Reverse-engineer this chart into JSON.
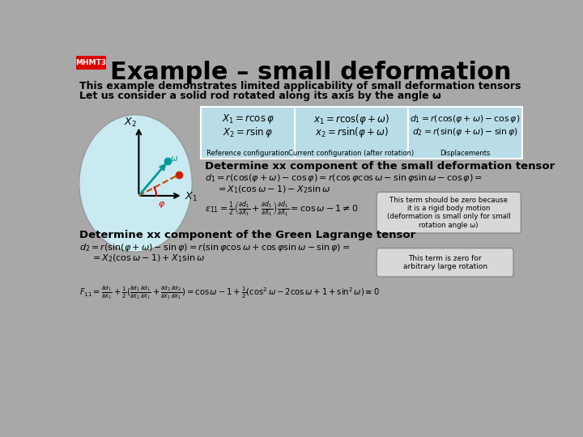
{
  "bg_color": "#a8a8a8",
  "title_box_color": "#dd0000",
  "title_box_text": "MHMT3",
  "title_text": "Example – small deformation",
  "subtitle1": "This example demonstrates limited applicability of small deformation tensors",
  "subtitle2": "Let us consider a solid rod rotated along its axis by the angle ω",
  "eq_box_color": "#b8dde8",
  "ref_config_label": "Reference configuration",
  "cur_config_label": "Current configuration (after rotation)",
  "disp_label": "Displacements",
  "det_xx_small": "Determine xx component of the small deformation tensor",
  "det_xx_green": "Determine xx component of the Green Lagrange tensor",
  "note1_text": "This term should be zero because\nit is a rigid body motion\n(deformation is small only for small\nrotation angle ω)",
  "note2_text": "This term is zero for\narbitrary large rotation",
  "circle_fill": "#c8eaf0",
  "circle_edge": "#999999",
  "dot_teal": "#009999",
  "dot_red": "#cc2200",
  "arrow_color": "#cc0000",
  "axis_color": "#000000",
  "phi_deg": 28,
  "omega_deg": 22
}
